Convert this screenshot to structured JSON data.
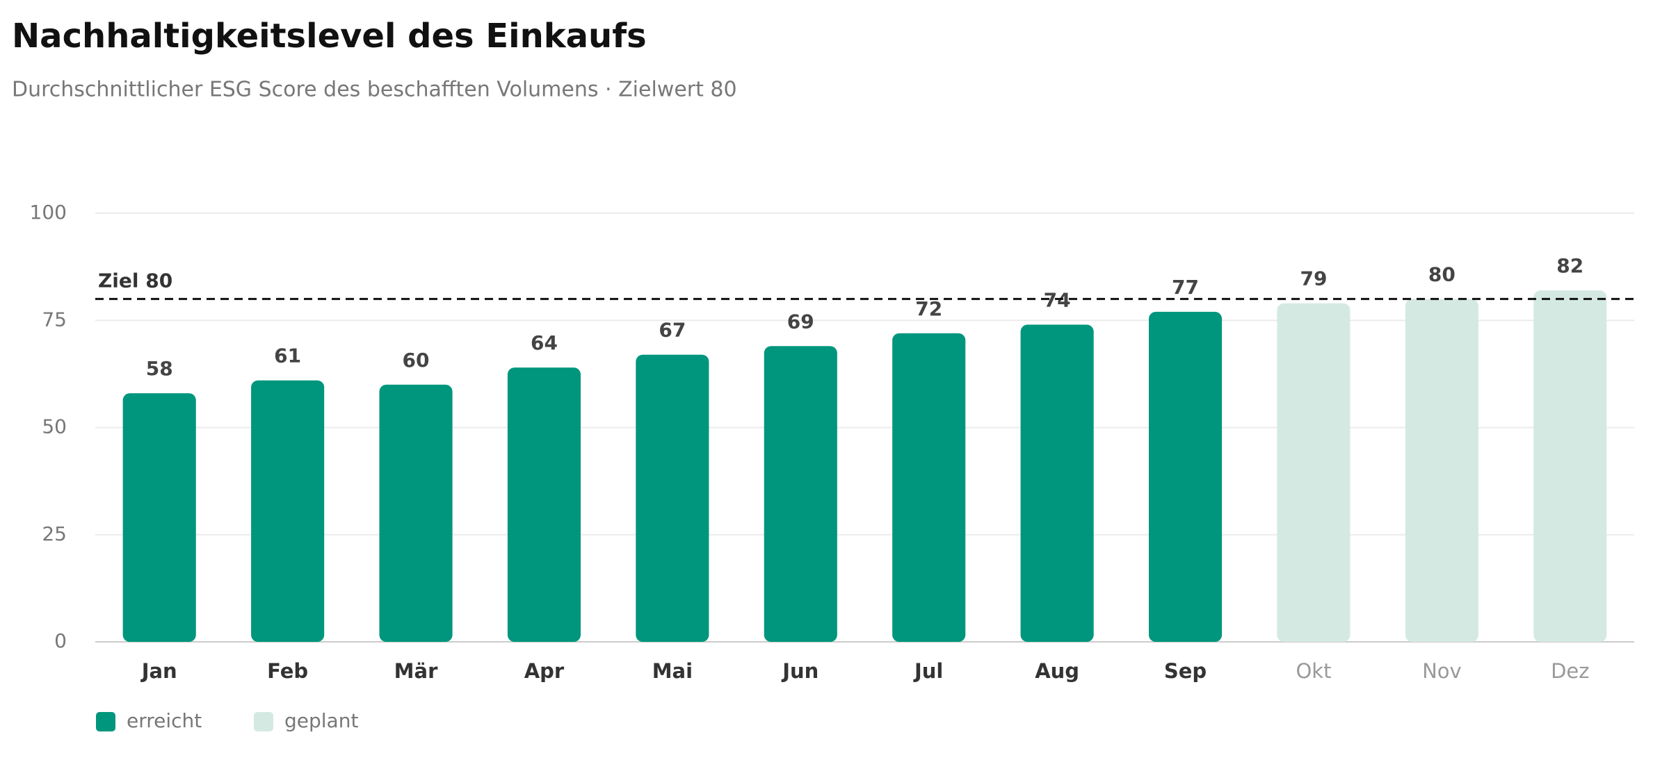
{
  "chart_data": {
    "type": "bar",
    "title": "Nachhaltigkeitslevel des Einkaufs",
    "subtitle": "Durchschnittlicher ESG Score des beschafften Volumens · Zielwert 80",
    "categories": [
      "Jan",
      "Feb",
      "Mär",
      "Apr",
      "Mai",
      "Jun",
      "Jul",
      "Aug",
      "Sep",
      "Okt",
      "Nov",
      "Dez"
    ],
    "series": [
      {
        "name": "erreicht",
        "color": "#00967d",
        "values": [
          58,
          61,
          60,
          64,
          67,
          69,
          72,
          74,
          77,
          null,
          null,
          null
        ]
      },
      {
        "name": "geplant",
        "color": "#d5e9e3",
        "values": [
          null,
          null,
          null,
          null,
          null,
          null,
          null,
          null,
          null,
          79,
          80,
          82
        ]
      }
    ],
    "target": 80,
    "target_label": "Ziel 80",
    "ylim": [
      0,
      100
    ],
    "yticks": [
      0,
      25,
      50,
      75,
      100
    ],
    "grid": true,
    "legend": "bottom-left"
  }
}
